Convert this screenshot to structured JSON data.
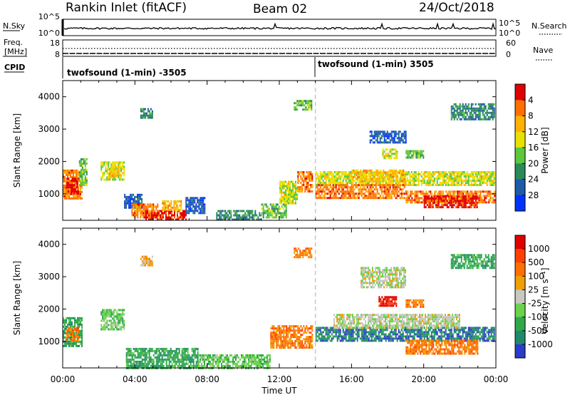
{
  "header": {
    "station": "Rankin Inlet (fitACF)",
    "beam": "Beam 02",
    "date": "24/Oct/2018"
  },
  "top_panels": {
    "nsky": {
      "label": "N.Sky",
      "ticks_left": [
        "10^5",
        "10^0"
      ],
      "ticks_right": [
        "10^5",
        "10^0"
      ],
      "right_label": "N.Search"
    },
    "freq": {
      "label_line1": "Freq.",
      "label_line2": "[MHz]",
      "ticks_left": [
        "18",
        "8"
      ],
      "ticks_right": [
        "60",
        "0"
      ],
      "right_label": "Nave"
    },
    "cpid": {
      "label": "CPID",
      "segments": [
        {
          "text": "twofsound (1-min) -3505",
          "start_hour": 0
        },
        {
          "text": "twofsound (1-min) 3505",
          "start_hour": 14.0
        }
      ]
    }
  },
  "chart_data": [
    {
      "type": "heatmap",
      "panel": "power",
      "ylabel": "Slant Range [km]",
      "xlabel": "",
      "xlim": [
        0,
        24
      ],
      "ylim": [
        180,
        4500
      ],
      "y_ticks": [
        1000,
        2000,
        3000,
        4000
      ],
      "x_ticks": [
        "00:00",
        "04:00",
        "08:00",
        "12:00",
        "16:00",
        "20:00",
        "00:00"
      ],
      "dashed_vline_hour": 14.0,
      "colorbar": {
        "label": "Power [dB]",
        "ticks": [
          "4",
          "8",
          "12",
          "16",
          "20",
          "24",
          "28"
        ],
        "colors": [
          "#0033ff",
          "#1e5aa8",
          "#2a8a5a",
          "#5cc83c",
          "#e8e000",
          "#ffb000",
          "#ff7000",
          "#e00000"
        ]
      },
      "regions": [
        {
          "t0": 0.0,
          "t1": 1.1,
          "r0": 850,
          "r1": 1750,
          "level": 6
        },
        {
          "t0": 0.2,
          "t1": 0.9,
          "r0": 1000,
          "r1": 1500,
          "level": 7
        },
        {
          "t0": 0.9,
          "t1": 1.3,
          "r0": 1300,
          "r1": 2100,
          "level": 3
        },
        {
          "t0": 2.1,
          "t1": 3.4,
          "r0": 1450,
          "r1": 2000,
          "level": 4
        },
        {
          "t0": 2.5,
          "t1": 3.1,
          "r0": 1550,
          "r1": 1850,
          "level": 5
        },
        {
          "t0": 3.4,
          "t1": 4.4,
          "r0": 600,
          "r1": 1000,
          "level": 1
        },
        {
          "t0": 3.8,
          "t1": 5.3,
          "r0": 250,
          "r1": 700,
          "level": 6
        },
        {
          "t0": 4.5,
          "t1": 6.8,
          "r0": 200,
          "r1": 500,
          "level": 7
        },
        {
          "t0": 5.5,
          "t1": 6.6,
          "r0": 500,
          "r1": 800,
          "level": 5
        },
        {
          "t0": 6.8,
          "t1": 7.9,
          "r0": 400,
          "r1": 900,
          "level": 1
        },
        {
          "t0": 8.5,
          "t1": 11.0,
          "r0": 200,
          "r1": 500,
          "level": 2
        },
        {
          "t0": 11.0,
          "t1": 12.4,
          "r0": 300,
          "r1": 700,
          "level": 3
        },
        {
          "t0": 12.0,
          "t1": 13.0,
          "r0": 700,
          "r1": 1400,
          "level": 4
        },
        {
          "t0": 13.0,
          "t1": 13.8,
          "r0": 1050,
          "r1": 1700,
          "level": 6
        },
        {
          "t0": 12.8,
          "t1": 13.8,
          "r0": 3600,
          "r1": 3900,
          "level": 3
        },
        {
          "t0": 4.3,
          "t1": 5.0,
          "r0": 3350,
          "r1": 3650,
          "level": 2
        },
        {
          "t0": 14.0,
          "t1": 23.9,
          "r0": 1300,
          "r1": 1700,
          "level": 4
        },
        {
          "t0": 14.0,
          "t1": 19.0,
          "r0": 850,
          "r1": 1300,
          "level": 6
        },
        {
          "t0": 19.0,
          "t1": 23.9,
          "r0": 750,
          "r1": 1100,
          "level": 6
        },
        {
          "t0": 20.0,
          "t1": 23.0,
          "r0": 600,
          "r1": 950,
          "level": 7
        },
        {
          "t0": 16.0,
          "t1": 19.0,
          "r0": 1400,
          "r1": 1750,
          "level": 5
        },
        {
          "t0": 17.7,
          "t1": 18.5,
          "r0": 2100,
          "r1": 2400,
          "level": 4
        },
        {
          "t0": 19.0,
          "t1": 20.0,
          "r0": 2100,
          "r1": 2350,
          "level": 3
        },
        {
          "t0": 17.0,
          "t1": 19.0,
          "r0": 2600,
          "r1": 2950,
          "level": 1
        },
        {
          "t0": 21.5,
          "t1": 23.9,
          "r0": 3300,
          "r1": 3800,
          "level": 2
        }
      ]
    },
    {
      "type": "heatmap",
      "panel": "velocity",
      "ylabel": "Slant Range [km]",
      "xlabel": "Time UT",
      "xlim": [
        0,
        24
      ],
      "ylim": [
        180,
        4500
      ],
      "y_ticks": [
        1000,
        2000,
        3000,
        4000
      ],
      "x_ticks": [
        "00:00",
        "04:00",
        "08:00",
        "12:00",
        "16:00",
        "20:00",
        "00:00"
      ],
      "dashed_vline_hour": 14.0,
      "colorbar": {
        "label": "Velocity [m s⁻¹]",
        "ticks": [
          "1000",
          "500",
          "100",
          "25",
          "-25",
          "-100",
          "-500",
          "-1000"
        ],
        "colors": [
          "#2a3cc8",
          "#1f8a6a",
          "#2fa84a",
          "#6cd24c",
          "#c8c8c0",
          "#f0a000",
          "#ff7000",
          "#ff4000",
          "#e00000"
        ]
      },
      "regions": [
        {
          "t0": 0.0,
          "t1": 1.1,
          "r0": 850,
          "r1": 1750,
          "level": 2
        },
        {
          "t0": 0.2,
          "t1": 0.9,
          "r0": 1000,
          "r1": 1450,
          "level": 6
        },
        {
          "t0": 2.1,
          "t1": 3.4,
          "r0": 1400,
          "r1": 2000,
          "level": 3
        },
        {
          "t0": 3.5,
          "t1": 7.5,
          "r0": 200,
          "r1": 800,
          "level": 2
        },
        {
          "t0": 7.5,
          "t1": 11.5,
          "r0": 200,
          "r1": 600,
          "level": 3
        },
        {
          "t0": 11.5,
          "t1": 13.8,
          "r0": 800,
          "r1": 1500,
          "level": 6
        },
        {
          "t0": 12.8,
          "t1": 13.8,
          "r0": 3600,
          "r1": 3900,
          "level": 6
        },
        {
          "t0": 4.3,
          "t1": 5.0,
          "r0": 3350,
          "r1": 3650,
          "level": 5
        },
        {
          "t0": 14.0,
          "t1": 23.9,
          "r0": 1050,
          "r1": 1450,
          "level": 1
        },
        {
          "t0": 15.0,
          "t1": 22.0,
          "r0": 1450,
          "r1": 1850,
          "level": 4
        },
        {
          "t0": 19.0,
          "t1": 23.0,
          "r0": 650,
          "r1": 1050,
          "level": 6
        },
        {
          "t0": 17.5,
          "t1": 18.5,
          "r0": 2100,
          "r1": 2400,
          "level": 8
        },
        {
          "t0": 19.0,
          "t1": 20.0,
          "r0": 2100,
          "r1": 2300,
          "level": 6
        },
        {
          "t0": 21.5,
          "t1": 23.9,
          "r0": 3300,
          "r1": 3700,
          "level": 2
        },
        {
          "t0": 16.5,
          "t1": 19.0,
          "r0": 2700,
          "r1": 3300,
          "level": 4
        }
      ]
    }
  ]
}
